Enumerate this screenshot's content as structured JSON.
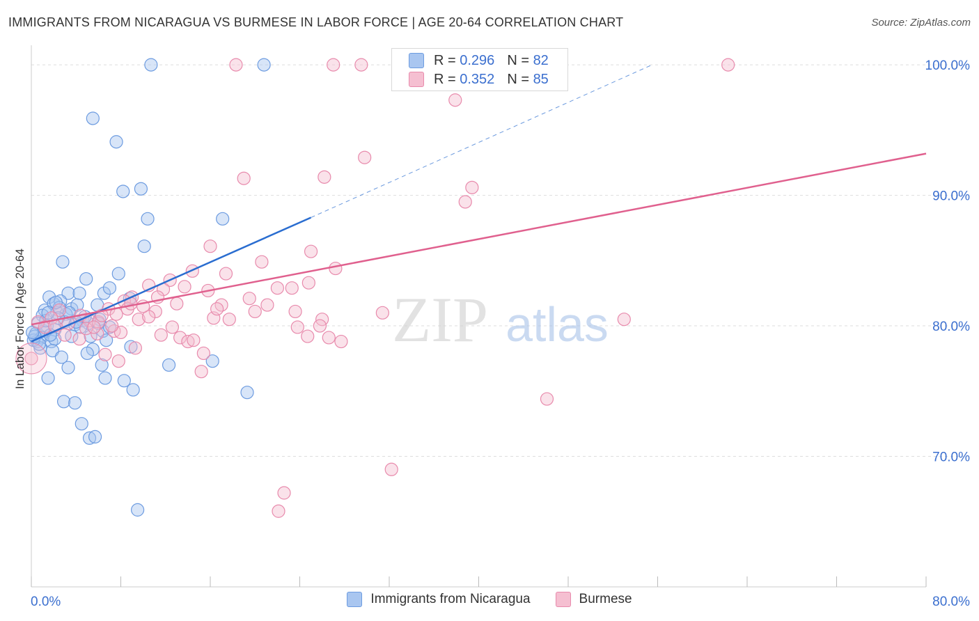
{
  "title": "IMMIGRANTS FROM NICARAGUA VS BURMESE IN LABOR FORCE | AGE 20-64 CORRELATION CHART",
  "source": "Source: ZipAtlas.com",
  "watermark": {
    "zip": "ZIP",
    "atlas": "atlas"
  },
  "legend_top": [
    {
      "r_label": "R =",
      "r_value": "0.296",
      "n_label": "N =",
      "n_value": "82"
    },
    {
      "r_label": "R =",
      "r_value": "0.352",
      "n_label": "N =",
      "n_value": "85"
    }
  ],
  "colors": {
    "blue_fill": "#a9c6f0",
    "blue_stroke": "#6c9be0",
    "blue_line": "#2a6dd0",
    "pink_fill": "#f5bfd1",
    "pink_stroke": "#e88aac",
    "pink_line": "#e0608e",
    "axis_text": "#3b6fcf",
    "grid": "#dedede"
  },
  "chart_data": {
    "type": "scatter",
    "title": "IMMIGRANTS FROM NICARAGUA VS BURMESE IN LABOR FORCE | AGE 20-64 CORRELATION CHART",
    "xlabel": "",
    "ylabel": "In Labor Force | Age 20-64",
    "xlim": [
      0,
      80
    ],
    "ylim": [
      60,
      101.5
    ],
    "x_tick_labels": [
      "0.0%",
      "80.0%"
    ],
    "y_ticks": [
      70,
      80,
      90,
      100
    ],
    "y_tick_labels": [
      "70.0%",
      "80.0%",
      "90.0%",
      "100.0%"
    ],
    "series": [
      {
        "name": "Immigrants from Nicaragua",
        "color": "blue",
        "r": 0.296,
        "n": 82,
        "trend": {
          "x0": 0,
          "y0": 78.8,
          "x1": 25.0,
          "y1": 88.3,
          "dash_x1": 55.5,
          "dash_y1": 100.0
        },
        "points": [
          [
            10.7,
            100
          ],
          [
            20.8,
            100
          ],
          [
            5.5,
            95.9
          ],
          [
            7.6,
            94.1
          ],
          [
            8.2,
            90.3
          ],
          [
            9.8,
            90.5
          ],
          [
            10.4,
            88.2
          ],
          [
            17.1,
            88.2
          ],
          [
            10.1,
            86.1
          ],
          [
            2.8,
            84.9
          ],
          [
            4.9,
            83.6
          ],
          [
            7.8,
            84.0
          ],
          [
            1.6,
            82.2
          ],
          [
            3.3,
            82.5
          ],
          [
            4.3,
            82.5
          ],
          [
            6.5,
            82.5
          ],
          [
            7.0,
            82.9
          ],
          [
            8.8,
            82.1
          ],
          [
            1.2,
            81.2
          ],
          [
            2.0,
            81.7
          ],
          [
            2.6,
            81.9
          ],
          [
            3.6,
            81.3
          ],
          [
            4.1,
            81.6
          ],
          [
            5.9,
            81.6
          ],
          [
            1.0,
            80.8
          ],
          [
            2.3,
            81.0
          ],
          [
            3.1,
            80.9
          ],
          [
            4.6,
            80.4
          ],
          [
            5.1,
            80.2
          ],
          [
            6.1,
            80.5
          ],
          [
            0.6,
            80.2
          ],
          [
            1.4,
            80.0
          ],
          [
            2.1,
            79.7
          ],
          [
            3.9,
            80.1
          ],
          [
            4.4,
            79.9
          ],
          [
            6.4,
            79.6
          ],
          [
            7.0,
            79.9
          ],
          [
            0.4,
            79.4
          ],
          [
            1.1,
            79.6
          ],
          [
            0.9,
            79.1
          ],
          [
            3.6,
            79.2
          ],
          [
            5.3,
            79.2
          ],
          [
            6.7,
            78.9
          ],
          [
            0.5,
            78.8
          ],
          [
            1.8,
            78.8
          ],
          [
            2.1,
            79.0
          ],
          [
            0.8,
            78.3
          ],
          [
            1.9,
            78.1
          ],
          [
            5.5,
            78.2
          ],
          [
            8.9,
            78.4
          ],
          [
            5.0,
            77.9
          ],
          [
            2.7,
            77.6
          ],
          [
            6.3,
            77.0
          ],
          [
            12.3,
            77.0
          ],
          [
            3.3,
            76.8
          ],
          [
            16.2,
            77.3
          ],
          [
            1.5,
            76.0
          ],
          [
            6.6,
            76.0
          ],
          [
            8.3,
            75.8
          ],
          [
            9.1,
            75.1
          ],
          [
            19.3,
            74.9
          ],
          [
            2.9,
            74.2
          ],
          [
            3.9,
            74.1
          ],
          [
            4.5,
            72.5
          ],
          [
            5.2,
            71.4
          ],
          [
            5.7,
            71.5
          ],
          [
            9.5,
            65.9
          ],
          [
            0.2,
            78.9
          ],
          [
            0.3,
            79.2
          ],
          [
            1.3,
            80.4
          ],
          [
            2.5,
            81.4
          ],
          [
            3.0,
            80.3
          ],
          [
            4.8,
            80.7
          ],
          [
            0.7,
            78.6
          ],
          [
            1.7,
            79.3
          ],
          [
            2.4,
            80.6
          ],
          [
            3.4,
            81.0
          ],
          [
            4.0,
            80.3
          ],
          [
            0.1,
            79.5
          ],
          [
            1.5,
            81.0
          ],
          [
            6.0,
            80.2
          ],
          [
            2.2,
            81.8
          ]
        ]
      },
      {
        "name": "Burmese",
        "color": "pink",
        "r": 0.352,
        "n": 85,
        "trend": {
          "x0": 0,
          "y0": 80.1,
          "x1": 80,
          "y1": 93.2
        },
        "points": [
          [
            18.3,
            100
          ],
          [
            27.0,
            100
          ],
          [
            29.5,
            100
          ],
          [
            62.3,
            100
          ],
          [
            37.9,
            97.3
          ],
          [
            29.8,
            92.9
          ],
          [
            19.0,
            91.3
          ],
          [
            26.2,
            91.4
          ],
          [
            39.4,
            90.6
          ],
          [
            38.8,
            89.5
          ],
          [
            16.0,
            86.1
          ],
          [
            25.0,
            85.7
          ],
          [
            20.6,
            84.9
          ],
          [
            27.2,
            84.4
          ],
          [
            14.4,
            84.2
          ],
          [
            17.4,
            84.0
          ],
          [
            12.4,
            83.5
          ],
          [
            24.8,
            83.3
          ],
          [
            10.5,
            83.1
          ],
          [
            13.7,
            83.0
          ],
          [
            11.8,
            82.8
          ],
          [
            15.8,
            82.7
          ],
          [
            23.3,
            82.9
          ],
          [
            9.0,
            82.2
          ],
          [
            17.0,
            81.6
          ],
          [
            21.1,
            81.6
          ],
          [
            8.3,
            81.9
          ],
          [
            8.6,
            81.3
          ],
          [
            11.1,
            81.1
          ],
          [
            20.0,
            81.1
          ],
          [
            23.6,
            81.1
          ],
          [
            31.4,
            81.0
          ],
          [
            9.6,
            80.5
          ],
          [
            10.5,
            80.7
          ],
          [
            16.3,
            80.6
          ],
          [
            17.7,
            80.5
          ],
          [
            26.0,
            80.5
          ],
          [
            53.0,
            80.5
          ],
          [
            2.5,
            81.2
          ],
          [
            4.4,
            80.8
          ],
          [
            5.2,
            80.4
          ],
          [
            6.9,
            81.3
          ],
          [
            7.6,
            80.9
          ],
          [
            3.3,
            80.2
          ],
          [
            4.9,
            79.8
          ],
          [
            6.0,
            80.3
          ],
          [
            7.4,
            79.6
          ],
          [
            12.6,
            79.9
          ],
          [
            23.8,
            79.9
          ],
          [
            24.7,
            79.2
          ],
          [
            26.6,
            79.1
          ],
          [
            11.6,
            79.3
          ],
          [
            13.3,
            79.1
          ],
          [
            14.0,
            78.8
          ],
          [
            27.7,
            78.8
          ],
          [
            4.3,
            79.0
          ],
          [
            5.9,
            79.4
          ],
          [
            8.0,
            79.5
          ],
          [
            9.3,
            78.3
          ],
          [
            15.4,
            77.9
          ],
          [
            6.6,
            77.8
          ],
          [
            7.8,
            77.3
          ],
          [
            15.2,
            76.5
          ],
          [
            46.1,
            74.4
          ],
          [
            32.2,
            69.0
          ],
          [
            22.6,
            67.2
          ],
          [
            22.1,
            65.8
          ],
          [
            0.0,
            77.5
          ],
          [
            0.6,
            80.3
          ],
          [
            1.2,
            79.9
          ],
          [
            1.8,
            80.6
          ],
          [
            2.1,
            80.0
          ],
          [
            3.0,
            79.3
          ],
          [
            5.6,
            79.9
          ],
          [
            6.3,
            80.8
          ],
          [
            7.2,
            80.0
          ],
          [
            8.9,
            81.7
          ],
          [
            10.0,
            81.5
          ],
          [
            11.3,
            82.2
          ],
          [
            13.0,
            81.7
          ],
          [
            14.5,
            78.9
          ],
          [
            16.6,
            81.3
          ],
          [
            19.5,
            82.1
          ],
          [
            22.0,
            82.9
          ],
          [
            25.8,
            80.0
          ]
        ]
      }
    ]
  },
  "bottom_legend": [
    "Immigrants from Nicaragua",
    "Burmese"
  ]
}
